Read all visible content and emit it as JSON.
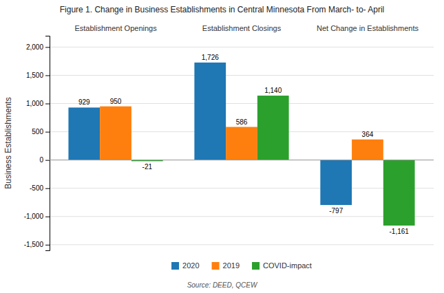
{
  "chart_data": {
    "type": "bar",
    "title": "Figure 1. Change in Business Establishments in Central Minnesota From March- to- April",
    "categories": [
      "Establishment Openings",
      "Establishment Closings",
      "Net Change in Establishments"
    ],
    "series": [
      {
        "name": "2020",
        "values": [
          929,
          1726,
          -797
        ],
        "value_labels": [
          "929",
          "1,726",
          "-797"
        ]
      },
      {
        "name": "2019",
        "values": [
          950,
          586,
          364
        ],
        "value_labels": [
          "950",
          "586",
          "364"
        ]
      },
      {
        "name": "COVID-impact",
        "values": [
          -21,
          1140,
          -1161
        ],
        "value_labels": [
          "-21",
          "1,140",
          "-1,161"
        ]
      }
    ],
    "y_label": "Business Establishments",
    "annotations": [
      "Source: DEED, QCEW"
    ],
    "ylim": [
      -1600,
      2200
    ],
    "yticks": [
      {
        "value": -1500,
        "label": "-1,500"
      },
      {
        "value": -1000,
        "label": "-1,000"
      },
      -500,
      0,
      500,
      {
        "value": 1000,
        "label": "1,000"
      },
      {
        "value": 1500,
        "label": "1,500"
      },
      {
        "value": 2000,
        "label": "2,000"
      }
    ],
    "grid": true,
    "data_labels": true,
    "legend": "bottom"
  }
}
